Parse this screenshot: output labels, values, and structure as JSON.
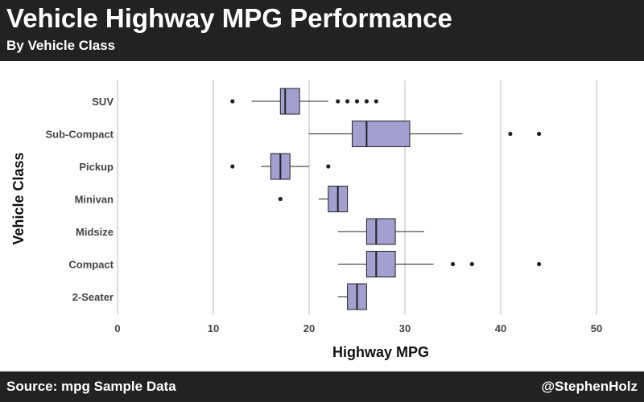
{
  "header": {
    "title": "Vehicle Highway MPG Performance",
    "subtitle": "By Vehicle Class"
  },
  "footer": {
    "source": "Source: mpg Sample Data",
    "handle": "@StephenHolz"
  },
  "colors": {
    "bar_background": "#222222",
    "box_fill": "#a39fd1",
    "gridline": "#bbbbbb",
    "outline": "#222222"
  },
  "chart_data": {
    "type": "boxplot",
    "orientation": "horizontal",
    "xlabel": "Highway MPG",
    "ylabel": "Vehicle Class",
    "xlim": [
      0,
      50
    ],
    "x_ticks": [
      0,
      10,
      20,
      30,
      40,
      50
    ],
    "grid": "vertical major gridlines",
    "categories": [
      "SUV",
      "Sub-Compact",
      "Pickup",
      "Minivan",
      "Midsize",
      "Compact",
      "2-Seater"
    ],
    "boxes": [
      {
        "class": "SUV",
        "whisker_low": 14,
        "q1": 17,
        "median": 17.5,
        "q3": 19,
        "whisker_high": 22,
        "outliers": [
          12,
          23,
          24,
          25,
          26,
          27
        ]
      },
      {
        "class": "Sub-Compact",
        "whisker_low": 20,
        "q1": 24.5,
        "median": 26,
        "q3": 30.5,
        "whisker_high": 36,
        "outliers": [
          41,
          44
        ]
      },
      {
        "class": "Pickup",
        "whisker_low": 15,
        "q1": 16,
        "median": 17,
        "q3": 18,
        "whisker_high": 20,
        "outliers": [
          12,
          22
        ]
      },
      {
        "class": "Minivan",
        "whisker_low": 21,
        "q1": 22,
        "median": 23,
        "q3": 24,
        "whisker_high": 24,
        "outliers": [
          17
        ]
      },
      {
        "class": "Midsize",
        "whisker_low": 23,
        "q1": 26,
        "median": 27,
        "q3": 29,
        "whisker_high": 32,
        "outliers": []
      },
      {
        "class": "Compact",
        "whisker_low": 23,
        "q1": 26,
        "median": 27,
        "q3": 29,
        "whisker_high": 33,
        "outliers": [
          35,
          37,
          44
        ]
      },
      {
        "class": "2-Seater",
        "whisker_low": 23,
        "q1": 24,
        "median": 25,
        "q3": 26,
        "whisker_high": 26,
        "outliers": []
      }
    ]
  }
}
